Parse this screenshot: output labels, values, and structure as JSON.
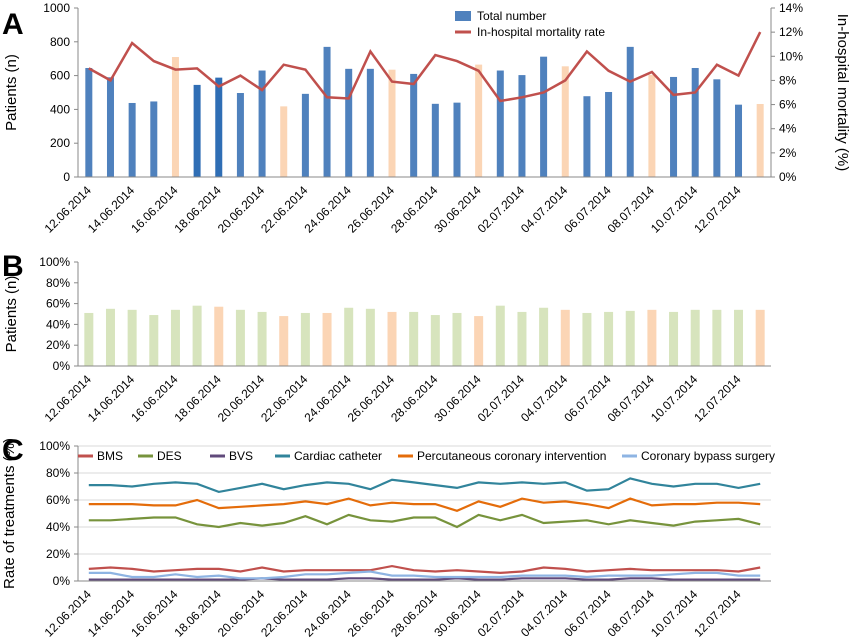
{
  "chart_data": [
    {
      "panel": "A",
      "type": "bar",
      "ylabel": "Patients (n)",
      "y2label": "In-hospital mortality (%)",
      "ylim": [
        0,
        1000
      ],
      "yticks": [
        "0",
        "200",
        "400",
        "600",
        "800",
        "1000"
      ],
      "y2lim": [
        0,
        14
      ],
      "y2ticks": [
        "0%",
        "2%",
        "4%",
        "6%",
        "8%",
        "10%",
        "12%",
        "14%"
      ],
      "xticks": [
        "12.06.2014",
        "14.06.2014",
        "16.06.2014",
        "18.06.2014",
        "20.06.2014",
        "22.06.2014",
        "24.06.2014",
        "26.06.2014",
        "28.06.2014",
        "30.06.2014",
        "02.07.2014",
        "04.07.2014",
        "06.07.2014",
        "08.07.2014",
        "10.07.2014",
        "12.07.2014"
      ],
      "legend_position": "top-center",
      "series": [
        {
          "name": "Total number",
          "kind": "bar",
          "color": "#4f81bd",
          "values": [
            645,
            590,
            438,
            447,
            710,
            545,
            588,
            497,
            630,
            418,
            492,
            770,
            640,
            640,
            635,
            610,
            433,
            440,
            665,
            630,
            603,
            712,
            655,
            478,
            503,
            770,
            605,
            592,
            645,
            578,
            428,
            432
          ],
          "weekend_color": "#fbd5b5",
          "weekend_indices": [
            4,
            9,
            14,
            18,
            22,
            26,
            31
          ]
        },
        {
          "name": "In-hospital mortality rate",
          "kind": "line",
          "color": "#c0504d",
          "values": [
            9.0,
            8.0,
            11.1,
            9.6,
            8.9,
            9.0,
            7.5,
            8.4,
            7.2,
            9.3,
            8.9,
            6.6,
            6.5,
            10.4,
            7.9,
            7.7,
            10.1,
            9.6,
            8.8,
            6.3,
            6.6,
            7.0,
            8.0,
            10.4,
            8.8,
            7.9,
            8.7,
            6.8,
            7.0,
            9.3,
            8.4,
            12.0
          ]
        }
      ]
    },
    {
      "panel": "B",
      "type": "bar",
      "ylabel": "Patients (n)",
      "ylim": [
        0,
        100
      ],
      "yticks": [
        "0%",
        "20%",
        "40%",
        "60%",
        "80%",
        "100%"
      ],
      "xticks": [
        "12.06.2014",
        "14.06.2014",
        "16.06.2014",
        "18.06.2014",
        "20.06.2014",
        "22.06.2014",
        "24.06.2014",
        "26.06.2014",
        "28.06.2014",
        "30.06.2014",
        "02.07.2014",
        "04.07.2014",
        "06.07.2014",
        "08.07.2014",
        "10.07.2014",
        "12.07.2014"
      ],
      "series": [
        {
          "kind": "bar",
          "color": "#d7e4bd",
          "weekend_color": "#fbd5b5",
          "weekend_indices": [
            6,
            9,
            11,
            14,
            18,
            22,
            26,
            31
          ],
          "values": [
            51,
            55,
            54,
            49,
            54,
            58,
            57,
            54,
            52,
            48,
            51,
            51,
            56,
            55,
            52,
            52,
            49,
            51,
            48,
            58,
            52,
            56,
            54,
            51,
            52,
            53,
            54,
            52,
            54,
            54,
            54,
            54
          ]
        }
      ]
    },
    {
      "panel": "C",
      "type": "line",
      "ylabel": "Rate of treatments (%)",
      "ylim": [
        0,
        100
      ],
      "yticks": [
        "0%",
        "20%",
        "40%",
        "60%",
        "80%",
        "100%"
      ],
      "xticks": [
        "12.06.2014",
        "14.06.2014",
        "16.06.2014",
        "18.06.2014",
        "20.06.2014",
        "22.06.2014",
        "24.06.2014",
        "26.06.2014",
        "28.06.2014",
        "30.06.2014",
        "02.07.2014",
        "04.07.2014",
        "06.07.2014",
        "08.07.2014",
        "10.07.2014",
        "12.07.2014"
      ],
      "legend_position": "top",
      "series": [
        {
          "name": "BMS",
          "color": "#c0504d",
          "values": [
            9,
            10,
            9,
            7,
            8,
            9,
            9,
            7,
            10,
            7,
            8,
            8,
            8,
            8,
            11,
            8,
            7,
            8,
            7,
            6,
            7,
            10,
            9,
            7,
            8,
            9,
            8,
            8,
            8,
            8,
            7,
            10
          ]
        },
        {
          "name": "DES",
          "color": "#77933c",
          "values": [
            45,
            45,
            46,
            47,
            47,
            42,
            40,
            43,
            41,
            43,
            48,
            42,
            49,
            45,
            44,
            47,
            47,
            40,
            49,
            45,
            49,
            43,
            44,
            45,
            42,
            45,
            43,
            41,
            44,
            45,
            46,
            42
          ]
        },
        {
          "name": "BVS",
          "color": "#604a7b",
          "values": [
            1,
            1,
            1,
            1,
            1,
            1,
            1,
            1,
            2,
            1,
            1,
            1,
            2,
            2,
            1,
            1,
            1,
            2,
            1,
            1,
            2,
            2,
            2,
            1,
            1,
            2,
            2,
            1,
            1,
            1,
            1,
            1
          ]
        },
        {
          "name": "Cardiac catheter",
          "color": "#31849b",
          "values": [
            71,
            71,
            70,
            72,
            73,
            72,
            66,
            69,
            72,
            68,
            71,
            73,
            72,
            68,
            75,
            73,
            71,
            69,
            73,
            72,
            73,
            72,
            73,
            67,
            68,
            76,
            72,
            70,
            72,
            72,
            69,
            72
          ]
        },
        {
          "name": "Percutaneous coronary intervention",
          "color": "#e46c0a",
          "values": [
            57,
            57,
            57,
            56,
            56,
            60,
            54,
            55,
            56,
            57,
            59,
            57,
            61,
            56,
            58,
            57,
            57,
            52,
            59,
            55,
            61,
            58,
            59,
            57,
            54,
            61,
            56,
            57,
            57,
            58,
            58,
            57
          ]
        },
        {
          "name": "Coronary bypass surgery",
          "color": "#8eb4e3",
          "values": [
            6,
            6,
            3,
            3,
            5,
            3,
            4,
            2,
            2,
            3,
            5,
            5,
            6,
            7,
            4,
            4,
            3,
            3,
            3,
            3,
            4,
            4,
            4,
            3,
            4,
            4,
            4,
            5,
            6,
            6,
            4,
            4
          ]
        }
      ]
    }
  ],
  "panels": {
    "a": "A",
    "b": "B",
    "c": "C"
  }
}
